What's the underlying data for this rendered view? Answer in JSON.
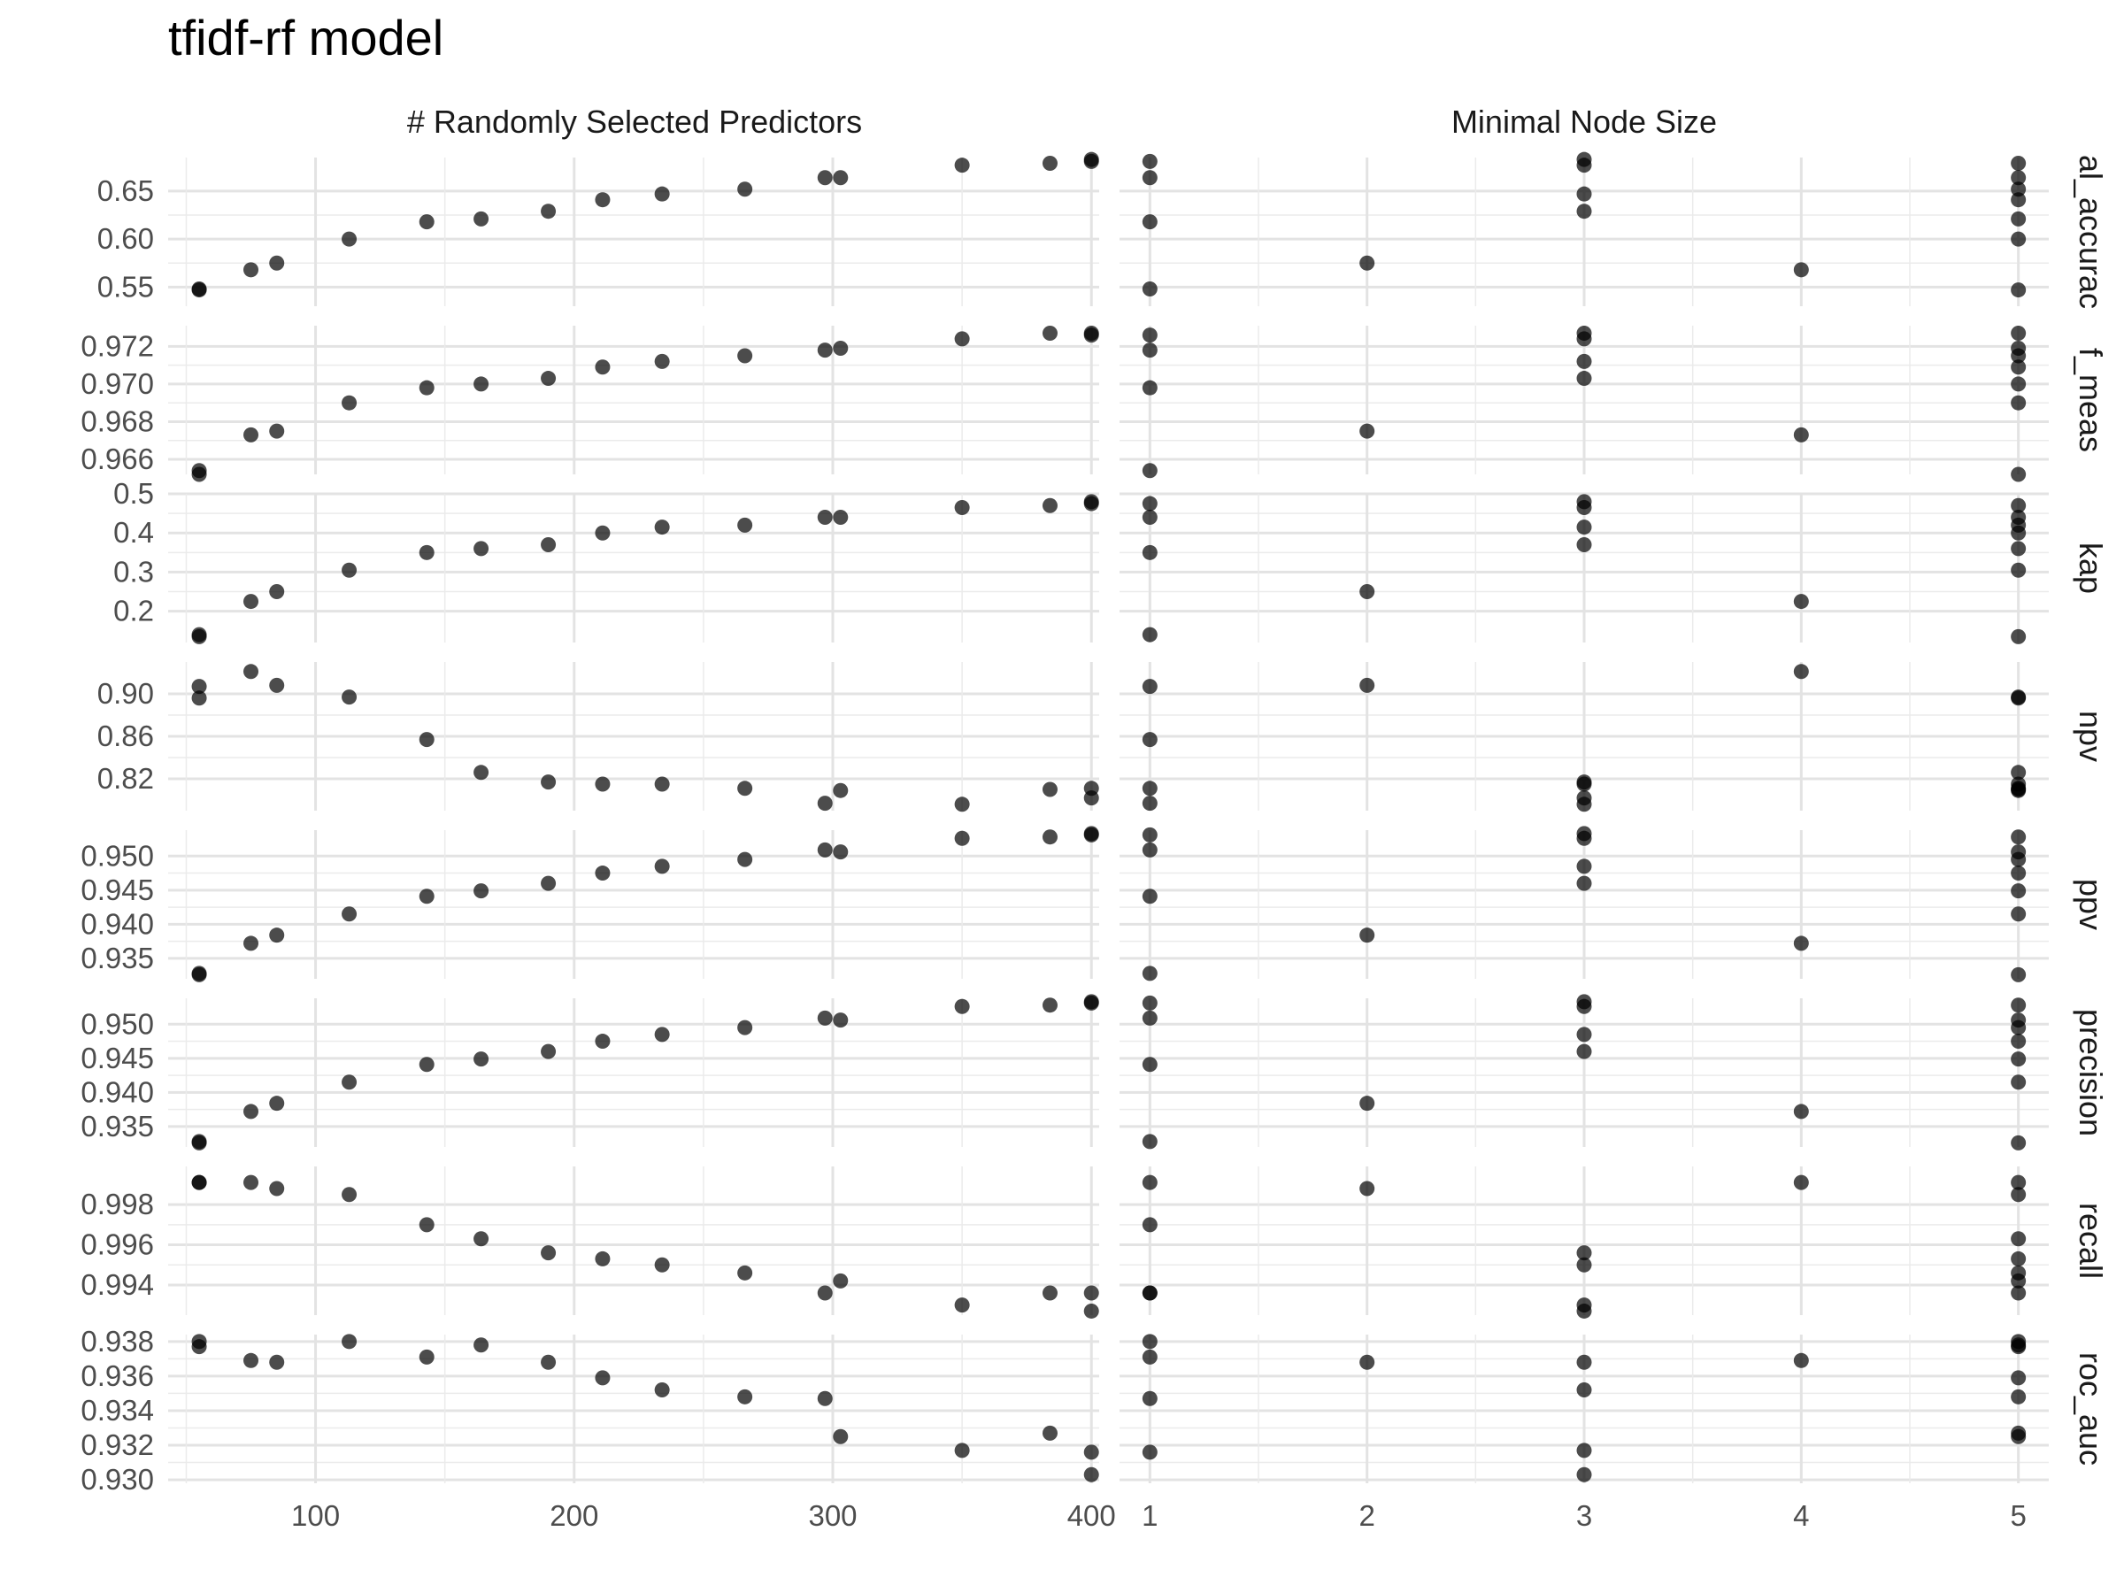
{
  "chart_data": {
    "type": "scatter",
    "title": "tfidf-rf model",
    "grid": true,
    "columns": [
      "# Randomly Selected Predictors",
      "Minimal Node Size"
    ],
    "rows": [
      "al_accurac",
      "f_meas",
      "kap",
      "npv",
      "ppv",
      "precision",
      "recall",
      "roc_auc"
    ],
    "x_axes": [
      {
        "range": [
          43,
          403
        ],
        "ticks": [
          100,
          200,
          300,
          400
        ],
        "tick_labels": [
          "100",
          "200",
          "300",
          "400"
        ]
      },
      {
        "range": [
          0.86,
          5.14
        ],
        "ticks": [
          1,
          2,
          3,
          4,
          5
        ],
        "tick_labels": [
          "1",
          "2",
          "3",
          "4",
          "5"
        ]
      }
    ],
    "x_mtry": [
      55,
      55,
      75,
      85,
      113,
      143,
      164,
      190,
      211,
      234,
      266,
      297,
      303,
      350,
      384,
      400,
      400
    ],
    "x_min_n": [
      1,
      5,
      4,
      2,
      5,
      1,
      5,
      3,
      5,
      3,
      5,
      1,
      5,
      3,
      5,
      1,
      3
    ],
    "panels": [
      {
        "metric": "al_accurac",
        "ylim": [
          0.53,
          0.685
        ],
        "ticks": [
          0.55,
          0.6,
          0.65
        ],
        "tick_labels": [
          "0.55",
          "0.60",
          "0.65"
        ],
        "values": [
          0.548,
          0.547,
          0.568,
          0.575,
          0.6,
          0.618,
          0.621,
          0.629,
          0.641,
          0.647,
          0.652,
          0.664,
          0.664,
          0.677,
          0.679,
          0.681,
          0.683
        ]
      },
      {
        "metric": "f_meas",
        "ylim": [
          0.9652,
          0.9731
        ],
        "ticks": [
          0.966,
          0.968,
          0.97,
          0.972
        ],
        "tick_labels": [
          "0.966",
          "0.968",
          "0.970",
          "0.972"
        ],
        "values": [
          0.9654,
          0.9652,
          0.9673,
          0.9675,
          0.969,
          0.9698,
          0.97,
          0.9703,
          0.9709,
          0.9712,
          0.9715,
          0.9718,
          0.9719,
          0.9724,
          0.9727,
          0.9726,
          0.9727
        ]
      },
      {
        "metric": "kap",
        "ylim": [
          0.12,
          0.5
        ],
        "ticks": [
          0.2,
          0.3,
          0.4,
          0.5
        ],
        "tick_labels": [
          "0.2",
          "0.3",
          "0.4",
          "0.5"
        ],
        "values": [
          0.14,
          0.135,
          0.225,
          0.25,
          0.305,
          0.35,
          0.36,
          0.37,
          0.4,
          0.415,
          0.42,
          0.44,
          0.44,
          0.465,
          0.47,
          0.475,
          0.48
        ]
      },
      {
        "metric": "npv",
        "ylim": [
          0.79,
          0.93
        ],
        "ticks": [
          0.82,
          0.86,
          0.9
        ],
        "tick_labels": [
          "0.82",
          "0.86",
          "0.90"
        ],
        "values": [
          0.907,
          0.896,
          0.921,
          0.908,
          0.897,
          0.857,
          0.826,
          0.817,
          0.815,
          0.815,
          0.811,
          0.797,
          0.809,
          0.796,
          0.81,
          0.811,
          0.802
        ]
      },
      {
        "metric": "ppv",
        "ylim": [
          0.932,
          0.9538
        ],
        "ticks": [
          0.935,
          0.94,
          0.945,
          0.95
        ],
        "tick_labels": [
          "0.935",
          "0.940",
          "0.945",
          "0.950"
        ],
        "values": [
          0.9328,
          0.9326,
          0.9372,
          0.9384,
          0.9415,
          0.9441,
          0.9449,
          0.946,
          0.9475,
          0.9485,
          0.9495,
          0.9509,
          0.9506,
          0.9526,
          0.9528,
          0.9531,
          0.9533
        ]
      },
      {
        "metric": "precision",
        "ylim": [
          0.932,
          0.9538
        ],
        "ticks": [
          0.935,
          0.94,
          0.945,
          0.95
        ],
        "tick_labels": [
          "0.935",
          "0.940",
          "0.945",
          "0.950"
        ],
        "values": [
          0.9328,
          0.9326,
          0.9372,
          0.9384,
          0.9415,
          0.9441,
          0.9449,
          0.946,
          0.9475,
          0.9485,
          0.9495,
          0.9509,
          0.9506,
          0.9526,
          0.9528,
          0.9531,
          0.9533
        ]
      },
      {
        "metric": "recall",
        "ylim": [
          0.9925,
          0.9999
        ],
        "ticks": [
          0.994,
          0.996,
          0.998
        ],
        "tick_labels": [
          "0.994",
          "0.996",
          "0.998"
        ],
        "values": [
          0.9991,
          0.9991,
          0.9991,
          0.9988,
          0.9985,
          0.997,
          0.9963,
          0.9956,
          0.9953,
          0.995,
          0.9946,
          0.9936,
          0.9942,
          0.993,
          0.9936,
          0.9936,
          0.9927
        ]
      },
      {
        "metric": "roc_auc",
        "ylim": [
          0.9298,
          0.9384
        ],
        "ticks": [
          0.93,
          0.932,
          0.934,
          0.936,
          0.938
        ],
        "tick_labels": [
          "0.930",
          "0.932",
          "0.934",
          "0.936",
          "0.938"
        ],
        "values": [
          0.938,
          0.9377,
          0.9369,
          0.9368,
          0.938,
          0.9371,
          0.9378,
          0.9368,
          0.9359,
          0.9352,
          0.9348,
          0.9347,
          0.9325,
          0.9317,
          0.9327,
          0.9316,
          0.9303
        ]
      }
    ]
  }
}
